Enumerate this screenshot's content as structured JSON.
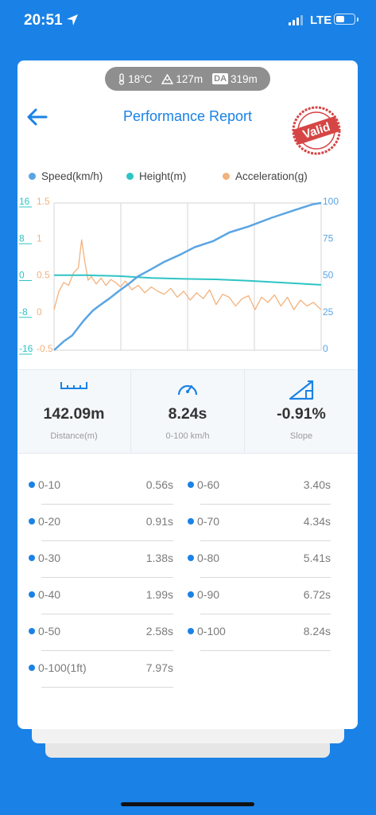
{
  "status_bar": {
    "time": "20:51",
    "network": "LTE"
  },
  "environment": {
    "temperature": "18°C",
    "altitude": "127m",
    "density_altitude_label": "DA",
    "density_altitude": "319m"
  },
  "header": {
    "title": "Performance Report",
    "stamp": "Valid"
  },
  "legend": [
    {
      "label": "Speed(km/h)",
      "color": "#5aa5e3"
    },
    {
      "label": "Height(m)",
      "color": "#2ec4c4"
    },
    {
      "label": "Acceleration(g)",
      "color": "#f2b27d"
    }
  ],
  "chart_data": {
    "type": "line",
    "x_range": [
      0,
      8.24
    ],
    "axes": {
      "height": {
        "ticks": [
          "16",
          "8",
          "0",
          "-8",
          "-16"
        ],
        "ylim": [
          -16,
          16
        ],
        "color": "#2ec4c4"
      },
      "acceleration": {
        "ticks": [
          "1.5",
          "1",
          "0.5",
          "0",
          "-0.5"
        ],
        "ylim": [
          -0.5,
          1.5
        ],
        "color": "#f2b27d"
      },
      "speed": {
        "ticks": [
          "100",
          "75",
          "50",
          "25",
          "0"
        ],
        "ylim": [
          0,
          100
        ],
        "color": "#5aa5e3"
      }
    },
    "series": [
      {
        "name": "Speed(km/h)",
        "axis": "speed",
        "color": "#5aa5e3",
        "x": [
          0,
          0.3,
          0.56,
          0.91,
          1.2,
          1.38,
          1.7,
          1.99,
          2.3,
          2.58,
          3.0,
          3.4,
          3.9,
          4.34,
          4.9,
          5.41,
          6.0,
          6.72,
          7.4,
          7.97,
          8.24
        ],
        "values": [
          0,
          6,
          10,
          20,
          27,
          30,
          35,
          40,
          45,
          50,
          55,
          60,
          65,
          70,
          74,
          80,
          84,
          90,
          95,
          99,
          100
        ]
      },
      {
        "name": "Height(m)",
        "axis": "height",
        "color": "#2ec4c4",
        "x": [
          0,
          1,
          2,
          3,
          4,
          5,
          6,
          7,
          8.24
        ],
        "values": [
          0.3,
          0.3,
          0.1,
          -0.3,
          -0.5,
          -0.6,
          -0.9,
          -1.3,
          -1.8
        ]
      },
      {
        "name": "Acceleration(g)",
        "axis": "acceleration",
        "color": "#f2b27d",
        "x": [
          0,
          0.15,
          0.3,
          0.45,
          0.6,
          0.75,
          0.85,
          0.95,
          1.05,
          1.15,
          1.3,
          1.45,
          1.6,
          1.75,
          1.9,
          2.05,
          2.2,
          2.4,
          2.6,
          2.8,
          3.0,
          3.2,
          3.4,
          3.6,
          3.8,
          4.0,
          4.2,
          4.4,
          4.6,
          4.8,
          5.0,
          5.2,
          5.4,
          5.6,
          5.8,
          6.0,
          6.2,
          6.4,
          6.6,
          6.8,
          7.0,
          7.2,
          7.4,
          7.6,
          7.8,
          8.0,
          8.24
        ],
        "values": [
          0.05,
          0.3,
          0.42,
          0.38,
          0.55,
          0.62,
          1.0,
          0.7,
          0.45,
          0.5,
          0.4,
          0.48,
          0.38,
          0.46,
          0.42,
          0.36,
          0.44,
          0.32,
          0.38,
          0.28,
          0.36,
          0.3,
          0.26,
          0.34,
          0.22,
          0.3,
          0.18,
          0.28,
          0.2,
          0.32,
          0.12,
          0.26,
          0.22,
          0.1,
          0.2,
          0.24,
          0.05,
          0.22,
          0.15,
          0.25,
          0.1,
          0.22,
          0.05,
          0.18,
          0.1,
          0.15,
          0.05
        ]
      }
    ],
    "grid": true
  },
  "stats": [
    {
      "value": "142.09m",
      "label": "Distance(m)",
      "icon": "ruler-icon"
    },
    {
      "value": "8.24s",
      "label": "0-100 km/h",
      "icon": "speedometer-icon"
    },
    {
      "value": "-0.91%",
      "label": "Slope",
      "icon": "slope-icon"
    }
  ],
  "splits": [
    {
      "label": "0-10",
      "time": "0.56s"
    },
    {
      "label": "0-20",
      "time": "0.91s"
    },
    {
      "label": "0-30",
      "time": "1.38s"
    },
    {
      "label": "0-40",
      "time": "1.99s"
    },
    {
      "label": "0-50",
      "time": "2.58s"
    },
    {
      "label": "0-100(1ft)",
      "time": "7.97s"
    },
    {
      "label": "0-60",
      "time": "3.40s"
    },
    {
      "label": "0-70",
      "time": "4.34s"
    },
    {
      "label": "0-80",
      "time": "5.41s"
    },
    {
      "label": "0-90",
      "time": "6.72s"
    },
    {
      "label": "0-100",
      "time": "8.24s"
    }
  ]
}
